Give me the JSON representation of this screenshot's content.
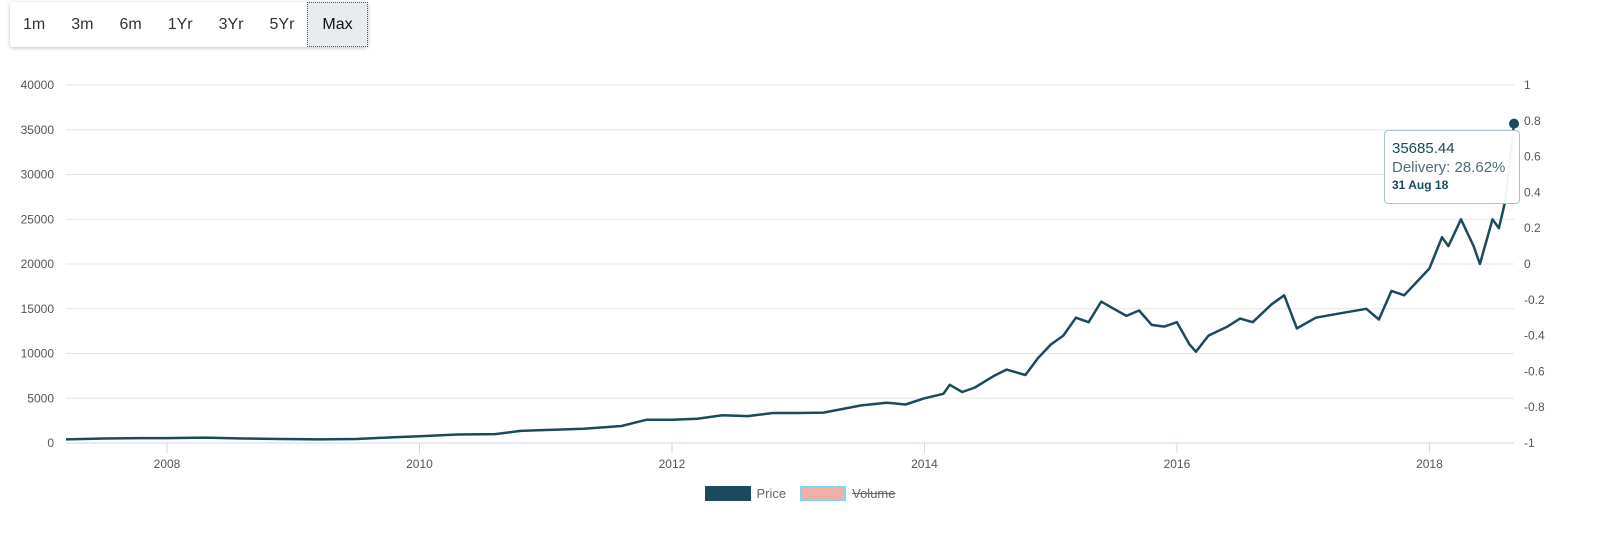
{
  "range_selector": {
    "buttons": [
      {
        "label": "1m",
        "active": false
      },
      {
        "label": "3m",
        "active": false
      },
      {
        "label": "6m",
        "active": false
      },
      {
        "label": "1Yr",
        "active": false
      },
      {
        "label": "3Yr",
        "active": false
      },
      {
        "label": "5Yr",
        "active": false
      },
      {
        "label": "Max",
        "active": true
      }
    ]
  },
  "tooltip": {
    "value": "35685.44",
    "delivery": "Delivery: 28.62%",
    "date": "31 Aug 18"
  },
  "legend": {
    "price_label": "Price",
    "volume_label": "Volume",
    "volume_hidden": true
  },
  "colors": {
    "price_line": "#1a4a5c",
    "volume": "#f0b0aa"
  },
  "chart_data": {
    "type": "line",
    "xlim": [
      2007.2,
      2018.67
    ],
    "ylim": [
      0,
      40000
    ],
    "y2lim": [
      -1,
      1
    ],
    "x_ticks": [
      "2008",
      "2010",
      "2012",
      "2014",
      "2016",
      "2018"
    ],
    "y_ticks": [
      "0",
      "5000",
      "10000",
      "15000",
      "20000",
      "25000",
      "30000",
      "35000",
      "40000"
    ],
    "y2_ticks": [
      "-1",
      "-0.8",
      "-0.6",
      "-0.4",
      "-0.2",
      "0",
      "0.2",
      "0.4",
      "0.6",
      "0.8",
      "1"
    ],
    "series": [
      {
        "name": "Price",
        "points": [
          [
            2007.2,
            400
          ],
          [
            2007.5,
            500
          ],
          [
            2007.8,
            550
          ],
          [
            2008.0,
            550
          ],
          [
            2008.3,
            600
          ],
          [
            2008.6,
            500
          ],
          [
            2008.9,
            450
          ],
          [
            2009.2,
            400
          ],
          [
            2009.5,
            450
          ],
          [
            2009.8,
            650
          ],
          [
            2010.0,
            750
          ],
          [
            2010.3,
            950
          ],
          [
            2010.6,
            1000
          ],
          [
            2010.8,
            1350
          ],
          [
            2011.0,
            1450
          ],
          [
            2011.3,
            1600
          ],
          [
            2011.6,
            1900
          ],
          [
            2011.8,
            2600
          ],
          [
            2012.0,
            2600
          ],
          [
            2012.2,
            2700
          ],
          [
            2012.4,
            3100
          ],
          [
            2012.6,
            3000
          ],
          [
            2012.8,
            3350
          ],
          [
            2013.0,
            3350
          ],
          [
            2013.2,
            3400
          ],
          [
            2013.5,
            4200
          ],
          [
            2013.7,
            4500
          ],
          [
            2013.85,
            4300
          ],
          [
            2014.0,
            5000
          ],
          [
            2014.15,
            5500
          ],
          [
            2014.2,
            6500
          ],
          [
            2014.3,
            5700
          ],
          [
            2014.4,
            6200
          ],
          [
            2014.55,
            7500
          ],
          [
            2014.65,
            8200
          ],
          [
            2014.8,
            7600
          ],
          [
            2014.9,
            9500
          ],
          [
            2015.0,
            11000
          ],
          [
            2015.1,
            12000
          ],
          [
            2015.2,
            14000
          ],
          [
            2015.3,
            13500
          ],
          [
            2015.4,
            15800
          ],
          [
            2015.5,
            15000
          ],
          [
            2015.6,
            14200
          ],
          [
            2015.7,
            14800
          ],
          [
            2015.8,
            13200
          ],
          [
            2015.9,
            13000
          ],
          [
            2016.0,
            13500
          ],
          [
            2016.1,
            11000
          ],
          [
            2016.15,
            10200
          ],
          [
            2016.25,
            12000
          ],
          [
            2016.4,
            13000
          ],
          [
            2016.5,
            13900
          ],
          [
            2016.6,
            13500
          ],
          [
            2016.75,
            15500
          ],
          [
            2016.85,
            16500
          ],
          [
            2016.95,
            12800
          ],
          [
            2017.1,
            14000
          ],
          [
            2017.3,
            14500
          ],
          [
            2017.5,
            15000
          ],
          [
            2017.6,
            13800
          ],
          [
            2017.7,
            17000
          ],
          [
            2017.8,
            16500
          ],
          [
            2017.9,
            18000
          ],
          [
            2018.0,
            19500
          ],
          [
            2018.1,
            23000
          ],
          [
            2018.15,
            22000
          ],
          [
            2018.25,
            25000
          ],
          [
            2018.35,
            22000
          ],
          [
            2018.4,
            20000
          ],
          [
            2018.5,
            25000
          ],
          [
            2018.55,
            24000
          ],
          [
            2018.6,
            27000
          ],
          [
            2018.67,
            35685.44
          ]
        ]
      }
    ]
  }
}
